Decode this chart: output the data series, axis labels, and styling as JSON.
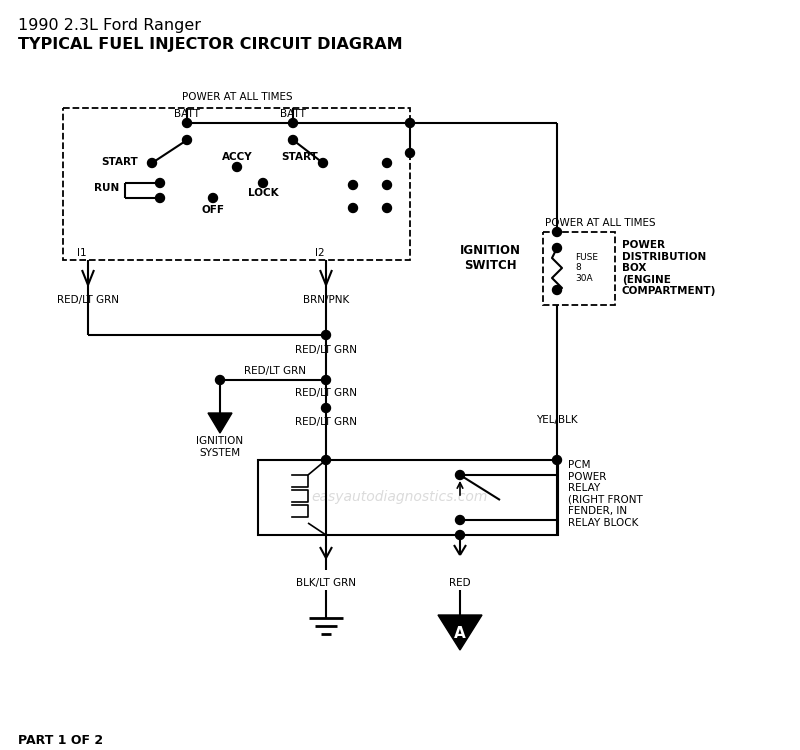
{
  "title_line1": "1990 2.3L Ford Ranger",
  "title_line2": "TYPICAL FUEL INJECTOR CIRCUIT DIAGRAM",
  "bg_color": "#ffffff",
  "watermark": "easyautodiagnostics.com",
  "footer": "PART 1 OF 2",
  "labels": {
    "power_at_all_times": "POWER AT ALL TIMES",
    "batt": "BATT",
    "start": "START",
    "accy": "ACCY",
    "run": "RUN",
    "off": "OFF",
    "lock": "LOCK",
    "i1": "I1",
    "i2": "I2",
    "ign_switch": "IGNITION\nSWITCH",
    "red_lt_grn": "RED/LT GRN",
    "brn_pnk": "BRN/PNK",
    "yel_blk": "YEL/BLK",
    "ign_system": "IGNITION\nSYSTEM",
    "fuse": "FUSE\n8\n30A",
    "power_dist": "POWER\nDISTRIBUTION\nBOX\n(ENGINE\nCOMPARTMENT)",
    "pcm_relay": "PCM\nPOWER\nRELAY\n(RIGHT FRONT\nFENDER, IN\nRELAY BLOCK",
    "blk_lt_grn": "BLK/LT GRN",
    "red": "RED",
    "connector_a": "A"
  }
}
